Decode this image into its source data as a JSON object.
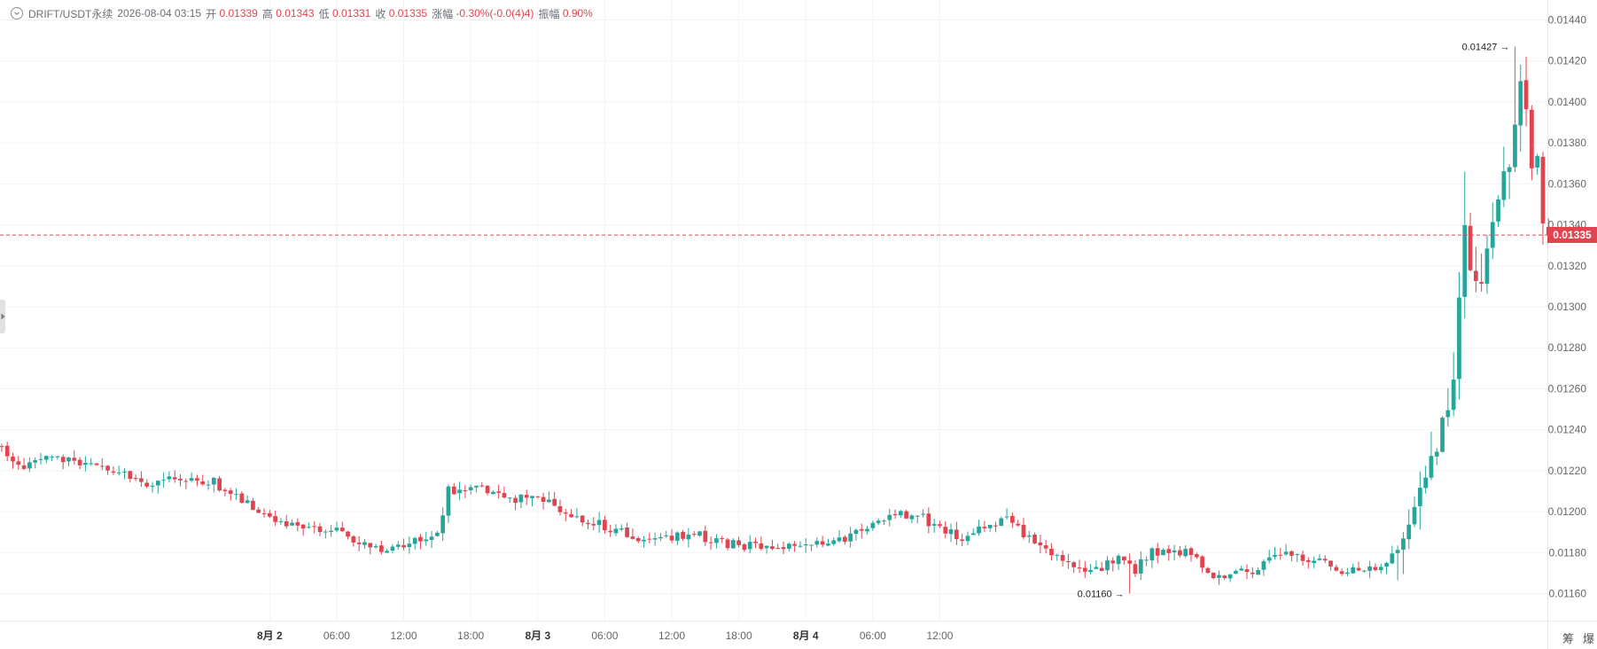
{
  "header": {
    "symbol": "DRIFT/USDT永续",
    "datetime": "2026-08-04 03:15",
    "open_label": "开",
    "open": "0.01339",
    "high_label": "高",
    "high": "0.01343",
    "low_label": "低",
    "low": "0.01331",
    "close_label": "收",
    "close": "0.01335",
    "change_label": "涨幅",
    "change": "-0.30%(-0.0(4)4)",
    "amplitude_label": "振幅",
    "amplitude": "0.90%"
  },
  "corner": {
    "left": "筹",
    "right": "爆"
  },
  "colors": {
    "up": "#26a69a",
    "down": "#e0444f",
    "grid": "#f2f3f5",
    "axis_text": "#666666"
  },
  "chart_data": {
    "type": "candlestick",
    "y_axis": {
      "position": "right",
      "range": [
        0.01148,
        0.01448
      ],
      "ticks": [
        "0.01440",
        "0.01420",
        "0.01400",
        "0.01380",
        "0.01360",
        "0.01340",
        "0.01320",
        "0.01300",
        "0.01280",
        "0.01260",
        "0.01240",
        "0.01220",
        "0.01200",
        "0.01180",
        "0.01160"
      ]
    },
    "x_axis": {
      "range_hours": [
        -0.15,
        138.4
      ],
      "ticks": [
        {
          "h": 24,
          "label": "8月 2",
          "bold": true
        },
        {
          "h": 30,
          "label": "06:00",
          "bold": false
        },
        {
          "h": 36,
          "label": "12:00",
          "bold": false
        },
        {
          "h": 42,
          "label": "18:00",
          "bold": false
        },
        {
          "h": 48,
          "label": "8月 3",
          "bold": true
        },
        {
          "h": 54,
          "label": "06:00",
          "bold": false
        },
        {
          "h": 60,
          "label": "12:00",
          "bold": false
        },
        {
          "h": 66,
          "label": "18:00",
          "bold": false
        },
        {
          "h": 72,
          "label": "8月 4",
          "bold": true
        },
        {
          "h": 78,
          "label": "06:00",
          "bold": false
        },
        {
          "h": 84,
          "label": "12:00",
          "bold": false
        }
      ]
    },
    "last_price": "0.01335",
    "last_price_value": 0.01335,
    "annotations": [
      {
        "label": "0.01427",
        "value": 0.01427,
        "candle_index": 271,
        "side": "left"
      },
      {
        "label": "0.01160",
        "value": 0.0116,
        "candle_index": 202,
        "side": "left"
      }
    ],
    "anchors": [
      [
        0,
        0.01232
      ],
      [
        3,
        0.01222
      ],
      [
        6,
        0.01224
      ],
      [
        10,
        0.01226
      ],
      [
        14,
        0.01224
      ],
      [
        18,
        0.0122
      ],
      [
        22,
        0.0122
      ],
      [
        26,
        0.01212
      ],
      [
        30,
        0.01216
      ],
      [
        34,
        0.01214
      ],
      [
        38,
        0.01214
      ],
      [
        42,
        0.01207
      ],
      [
        46,
        0.012
      ],
      [
        50,
        0.01195
      ],
      [
        54,
        0.0119
      ],
      [
        58,
        0.01192
      ],
      [
        62,
        0.01188
      ],
      [
        66,
        0.01183
      ],
      [
        70,
        0.01182
      ],
      [
        74,
        0.01185
      ],
      [
        78,
        0.01188
      ],
      [
        80,
        0.0121
      ],
      [
        84,
        0.01211
      ],
      [
        88,
        0.0121
      ],
      [
        92,
        0.01206
      ],
      [
        96,
        0.01207
      ],
      [
        100,
        0.01202
      ],
      [
        104,
        0.01196
      ],
      [
        108,
        0.01193
      ],
      [
        112,
        0.01189
      ],
      [
        116,
        0.01186
      ],
      [
        120,
        0.01187
      ],
      [
        124,
        0.01189
      ],
      [
        128,
        0.01185
      ],
      [
        132,
        0.01184
      ],
      [
        136,
        0.01182
      ],
      [
        140,
        0.01183
      ],
      [
        144,
        0.01184
      ],
      [
        148,
        0.01184
      ],
      [
        152,
        0.01188
      ],
      [
        156,
        0.01195
      ],
      [
        160,
        0.012
      ],
      [
        164,
        0.01198
      ],
      [
        168,
        0.01192
      ],
      [
        172,
        0.01187
      ],
      [
        176,
        0.01192
      ],
      [
        180,
        0.01196
      ],
      [
        184,
        0.01186
      ],
      [
        188,
        0.01178
      ],
      [
        192,
        0.01174
      ],
      [
        196,
        0.01172
      ],
      [
        200,
        0.01176
      ],
      [
        203,
        0.01172
      ],
      [
        206,
        0.0118
      ],
      [
        210,
        0.0118
      ],
      [
        214,
        0.0118
      ],
      [
        216,
        0.0117
      ],
      [
        220,
        0.01168
      ],
      [
        224,
        0.01172
      ],
      [
        228,
        0.01178
      ],
      [
        232,
        0.01178
      ],
      [
        236,
        0.01176
      ],
      [
        240,
        0.01172
      ],
      [
        244,
        0.01172
      ],
      [
        248,
        0.01175
      ],
      [
        250,
        0.01183
      ],
      [
        252,
        0.01196
      ],
      [
        254,
        0.01212
      ],
      [
        256,
        0.01226
      ],
      [
        258,
        0.01244
      ],
      [
        260,
        0.01264
      ],
      [
        262,
        0.01334
      ],
      [
        263,
        0.0132
      ],
      [
        265,
        0.0131
      ],
      [
        267,
        0.0134
      ],
      [
        269,
        0.0136
      ],
      [
        271,
        0.01392
      ],
      [
        272,
        0.0141
      ],
      [
        273,
        0.0139
      ],
      [
        274,
        0.0137
      ],
      [
        275,
        0.0137
      ],
      [
        276,
        0.01339
      ],
      [
        277,
        0.01335
      ]
    ],
    "candle_count": 278,
    "candle_minutes": 30
  }
}
